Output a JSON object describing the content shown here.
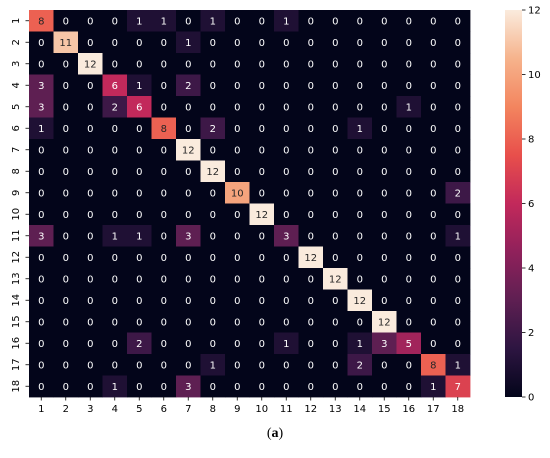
{
  "caption": {
    "open": "(",
    "letter": "a",
    "close": ")"
  },
  "chart_data": {
    "type": "heatmap",
    "x_labels": [
      "1",
      "2",
      "3",
      "4",
      "5",
      "6",
      "7",
      "8",
      "9",
      "10",
      "11",
      "12",
      "13",
      "14",
      "15",
      "16",
      "17",
      "18"
    ],
    "y_labels": [
      "1",
      "2",
      "3",
      "4",
      "5",
      "6",
      "7",
      "8",
      "9",
      "10",
      "11",
      "12",
      "13",
      "14",
      "15",
      "16",
      "17",
      "18"
    ],
    "matrix": [
      [
        8,
        0,
        0,
        0,
        1,
        1,
        0,
        1,
        0,
        0,
        1,
        0,
        0,
        0,
        0,
        0,
        0,
        0
      ],
      [
        0,
        11,
        0,
        0,
        0,
        0,
        1,
        0,
        0,
        0,
        0,
        0,
        0,
        0,
        0,
        0,
        0,
        0
      ],
      [
        0,
        0,
        12,
        0,
        0,
        0,
        0,
        0,
        0,
        0,
        0,
        0,
        0,
        0,
        0,
        0,
        0,
        0
      ],
      [
        3,
        0,
        0,
        6,
        1,
        0,
        2,
        0,
        0,
        0,
        0,
        0,
        0,
        0,
        0,
        0,
        0,
        0
      ],
      [
        3,
        0,
        0,
        2,
        6,
        0,
        0,
        0,
        0,
        0,
        0,
        0,
        0,
        0,
        0,
        1,
        0,
        0
      ],
      [
        1,
        0,
        0,
        0,
        0,
        8,
        0,
        2,
        0,
        0,
        0,
        0,
        0,
        1,
        0,
        0,
        0,
        0
      ],
      [
        0,
        0,
        0,
        0,
        0,
        0,
        12,
        0,
        0,
        0,
        0,
        0,
        0,
        0,
        0,
        0,
        0,
        0
      ],
      [
        0,
        0,
        0,
        0,
        0,
        0,
        0,
        12,
        0,
        0,
        0,
        0,
        0,
        0,
        0,
        0,
        0,
        0
      ],
      [
        0,
        0,
        0,
        0,
        0,
        0,
        0,
        0,
        10,
        0,
        0,
        0,
        0,
        0,
        0,
        0,
        0,
        2
      ],
      [
        0,
        0,
        0,
        0,
        0,
        0,
        0,
        0,
        0,
        12,
        0,
        0,
        0,
        0,
        0,
        0,
        0,
        0
      ],
      [
        3,
        0,
        0,
        1,
        1,
        0,
        3,
        0,
        0,
        0,
        3,
        0,
        0,
        0,
        0,
        0,
        0,
        1
      ],
      [
        0,
        0,
        0,
        0,
        0,
        0,
        0,
        0,
        0,
        0,
        0,
        12,
        0,
        0,
        0,
        0,
        0,
        0
      ],
      [
        0,
        0,
        0,
        0,
        0,
        0,
        0,
        0,
        0,
        0,
        0,
        0,
        12,
        0,
        0,
        0,
        0,
        0
      ],
      [
        0,
        0,
        0,
        0,
        0,
        0,
        0,
        0,
        0,
        0,
        0,
        0,
        0,
        12,
        0,
        0,
        0,
        0
      ],
      [
        0,
        0,
        0,
        0,
        0,
        0,
        0,
        0,
        0,
        0,
        0,
        0,
        0,
        0,
        12,
        0,
        0,
        0
      ],
      [
        0,
        0,
        0,
        0,
        2,
        0,
        0,
        0,
        0,
        0,
        1,
        0,
        0,
        1,
        3,
        5,
        0,
        0
      ],
      [
        0,
        0,
        0,
        0,
        0,
        0,
        0,
        1,
        0,
        0,
        0,
        0,
        0,
        2,
        0,
        0,
        8,
        1
      ],
      [
        0,
        0,
        0,
        1,
        0,
        0,
        3,
        0,
        0,
        0,
        0,
        0,
        0,
        0,
        0,
        0,
        1,
        7
      ]
    ],
    "colorbar": {
      "min": 0,
      "max": 12,
      "ticks": [
        0,
        2,
        4,
        6,
        8,
        10,
        12
      ]
    },
    "colormap": [
      "#03051a",
      "#2d1541",
      "#5e1f52",
      "#90215b",
      "#c2295b",
      "#e84f4b",
      "#f3855f",
      "#f6b38c",
      "#faebdd"
    ]
  }
}
